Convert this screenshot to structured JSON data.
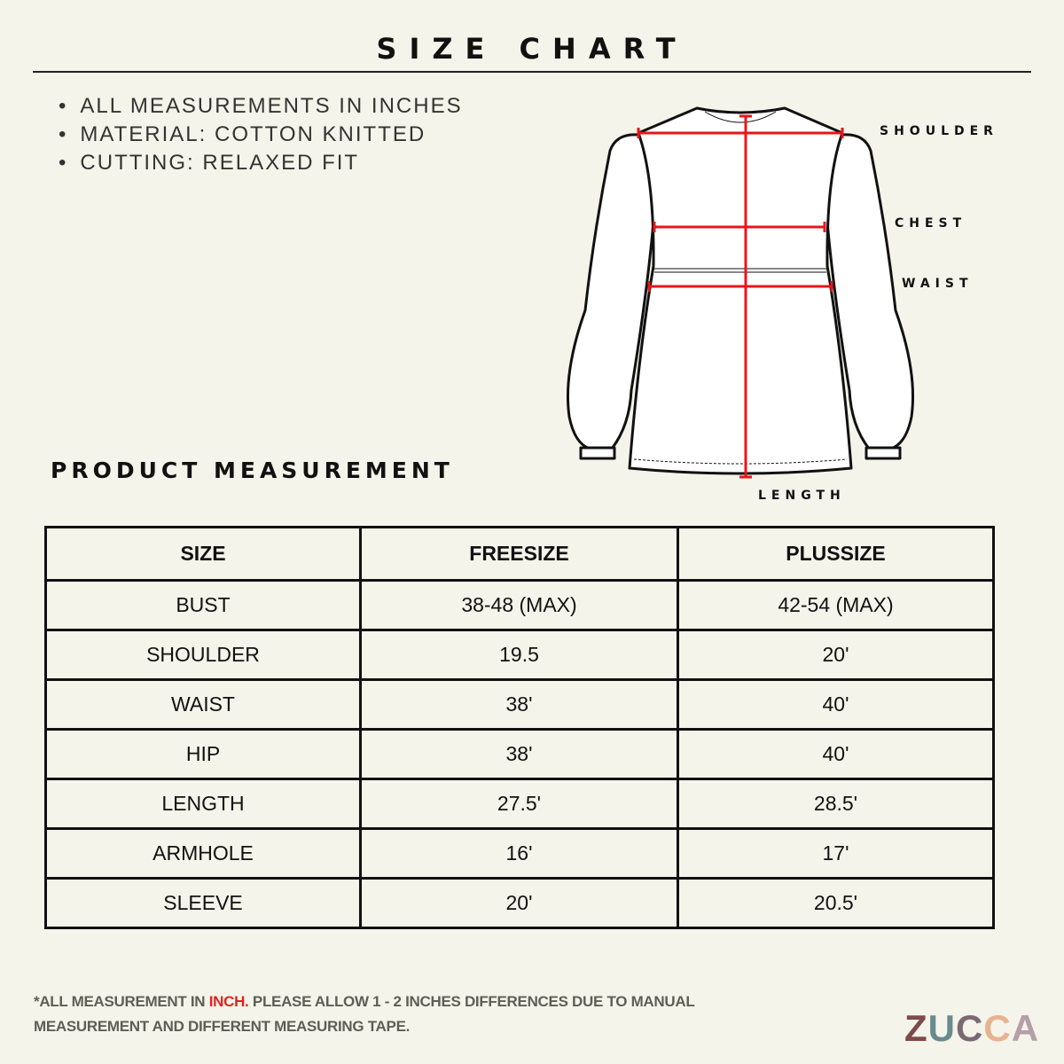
{
  "header": {
    "title": "SIZE CHART"
  },
  "notes": [
    "ALL MEASUREMENTS IN INCHES",
    "MATERIAL: COTTON KNITTED",
    "CUTTING: RELAXED FIT"
  ],
  "diagram": {
    "labels": {
      "shoulder": "SHOULDER",
      "chest": "CHEST",
      "waist": "WAIST",
      "length": "LENGTH"
    },
    "measure_color": "#e8151b"
  },
  "section_title": "PRODUCT MEASUREMENT",
  "table": {
    "headers": [
      "SIZE",
      "FREESIZE",
      "PLUSSIZE"
    ],
    "rows": [
      [
        "BUST",
        "38-48 (MAX)",
        "42-54 (MAX)"
      ],
      [
        "SHOULDER",
        "19.5",
        "20'"
      ],
      [
        "WAIST",
        "38'",
        "40'"
      ],
      [
        "HIP",
        "38'",
        "40'"
      ],
      [
        "LENGTH",
        "27.5'",
        "28.5'"
      ],
      [
        "ARMHOLE",
        "16'",
        "17'"
      ],
      [
        "SLEEVE",
        "20'",
        "20.5'"
      ]
    ]
  },
  "footer": {
    "prefix": "*ALL MEASUREMENT IN ",
    "highlight": "INCH.",
    "suffix": " PLEASE ALLOW 1 - 2 INCHES DIFFERENCES DUE TO MANUAL MEASUREMENT AND DIFFERENT MEASURING TAPE."
  },
  "logo": {
    "letters": [
      "Z",
      "U",
      "C",
      "C",
      "A"
    ],
    "colors": [
      "#7e4a4a",
      "#6a8a8d",
      "#7b6a74",
      "#e8b28f",
      "#b59fa8"
    ]
  }
}
